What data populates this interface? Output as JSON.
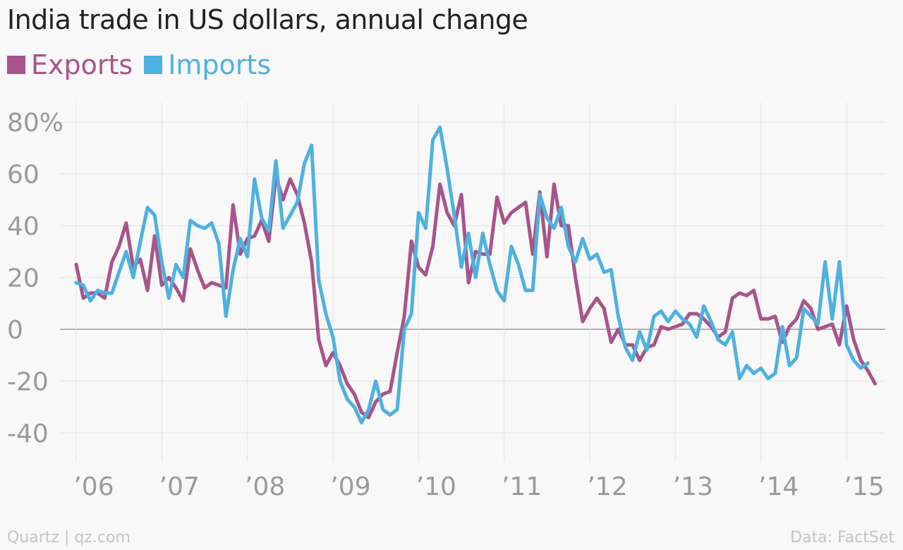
{
  "title": "India trade in US dollars, annual change",
  "footer": {
    "source_left": "Quartz | qz.com",
    "source_right": "Data: FactSet"
  },
  "colors": {
    "exports": "#a8548a",
    "imports": "#4eb1e0",
    "grid": "#e4e4e4",
    "zero": "#8c8c8c",
    "tick": "#9a9a9a"
  },
  "chart_data": {
    "type": "line",
    "title": "India trade in US dollars, annual change",
    "xlabel": "",
    "ylabel": "",
    "ylim": [
      -50,
      85
    ],
    "xlim": [
      2005.9,
      2015.3
    ],
    "yticks": [
      {
        "value": 80,
        "label": "80%"
      },
      {
        "value": 60,
        "label": "60"
      },
      {
        "value": 40,
        "label": "40"
      },
      {
        "value": 20,
        "label": "20"
      },
      {
        "value": 0,
        "label": "0"
      },
      {
        "value": -20,
        "label": "-20"
      },
      {
        "value": -40,
        "label": "-40"
      }
    ],
    "xticks": [
      {
        "value": 2006,
        "label": "’06"
      },
      {
        "value": 2007,
        "label": "’07"
      },
      {
        "value": 2008,
        "label": "’08"
      },
      {
        "value": 2009,
        "label": "’09"
      },
      {
        "value": 2010,
        "label": "’10"
      },
      {
        "value": 2011,
        "label": "’11"
      },
      {
        "value": 2012,
        "label": "’12"
      },
      {
        "value": 2013,
        "label": "’13"
      },
      {
        "value": 2014,
        "label": "’14"
      },
      {
        "value": 2015,
        "label": "’15"
      }
    ],
    "grid": true,
    "legend_position": "top-left",
    "x_start": 2006.0,
    "x_step": 0.08333,
    "series": [
      {
        "name": "Exports",
        "color": "#a8548a",
        "values": [
          25,
          12,
          14,
          14,
          12,
          26,
          32,
          41,
          24,
          27,
          15,
          36,
          17,
          20,
          16,
          11,
          31,
          23,
          16,
          18,
          17,
          16,
          48,
          29,
          35,
          36,
          42,
          34,
          59,
          50,
          58,
          52,
          41,
          26,
          -4,
          -14,
          -9,
          -14,
          -21,
          -25,
          -32,
          -34,
          -28,
          -25,
          -24,
          -9,
          5,
          34,
          24,
          21,
          32,
          56,
          45,
          40,
          52,
          18,
          30,
          29,
          29,
          51,
          41,
          45,
          47,
          49,
          29,
          53,
          28,
          56,
          40,
          40,
          20,
          3,
          8,
          12,
          8,
          -5,
          0,
          -6,
          -6,
          -12,
          -7,
          -6,
          1,
          0,
          1,
          2,
          6,
          6,
          4,
          1,
          -3,
          -1,
          12,
          14,
          13,
          15,
          4,
          4,
          5,
          -5,
          1,
          4,
          11,
          8,
          0,
          1,
          2,
          -6,
          9,
          -4,
          -12,
          -16,
          -21
        ]
      },
      {
        "name": "Imports",
        "color": "#4eb1e0",
        "values": [
          18,
          17,
          11,
          15,
          14,
          14,
          22,
          30,
          20,
          34,
          47,
          44,
          26,
          12,
          25,
          20,
          42,
          40,
          39,
          41,
          33,
          5,
          23,
          35,
          28,
          58,
          43,
          38,
          65,
          39,
          44,
          49,
          64,
          71,
          19,
          6,
          -3,
          -20,
          -27,
          -30,
          -36,
          -31,
          -20,
          -31,
          -33,
          -31,
          0,
          6,
          45,
          39,
          73,
          78,
          62,
          44,
          24,
          37,
          20,
          37,
          25,
          15,
          11,
          32,
          25,
          15,
          15,
          52,
          43,
          39,
          47,
          32,
          26,
          35,
          27,
          29,
          22,
          23,
          5,
          -7,
          -12,
          -1,
          -8,
          5,
          7,
          3,
          7,
          4,
          2,
          -3,
          9,
          3,
          -4,
          -6,
          -1,
          -19,
          -14,
          -17,
          -15,
          -19,
          -17,
          1,
          -14,
          -11,
          8,
          5,
          2,
          26,
          4,
          26,
          -6,
          -12,
          -15,
          -13
        ]
      }
    ]
  }
}
